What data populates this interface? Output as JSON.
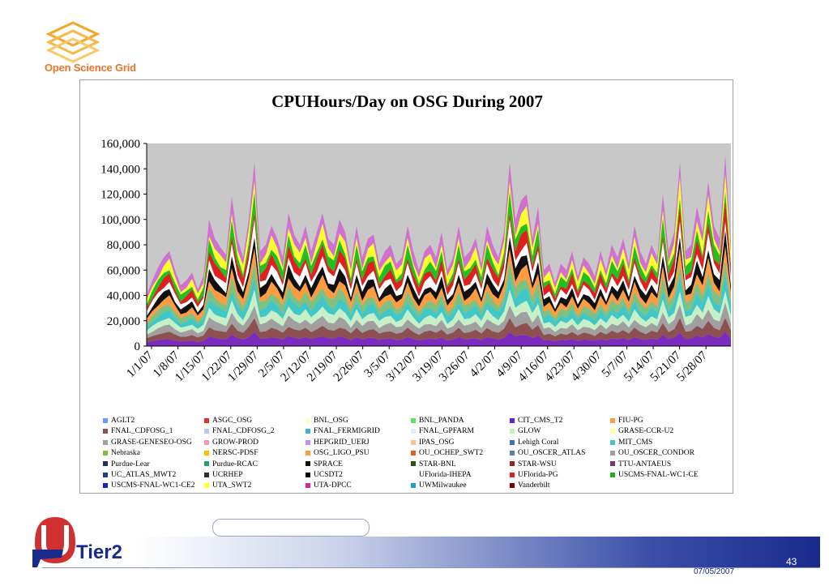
{
  "branding": {
    "org_name": "Open Science Grid",
    "logo_icon": "stacked-layers-icon",
    "tier_logo_text": "Tier2",
    "tier_logo_icon": "uf-gator-icon"
  },
  "footer": {
    "page_number": "43",
    "date": "07/05/2007"
  },
  "chart_data": {
    "type": "area",
    "stacked": true,
    "title": "CPUHours/Day on OSG During 2007",
    "xlabel": "",
    "ylabel": "",
    "ylim": [
      0,
      160000
    ],
    "y_ticks": [
      "0",
      "20,000",
      "40,000",
      "60,000",
      "80,000",
      "100,000",
      "120,000",
      "140,000",
      "160,000"
    ],
    "y_tick_values": [
      0,
      20000,
      40000,
      60000,
      80000,
      100000,
      120000,
      140000,
      160000
    ],
    "x_ticks": [
      "1/1/07",
      "1/8/07",
      "1/15/07",
      "1/22/07",
      "1/29/07",
      "2/5/07",
      "2/12/07",
      "2/19/07",
      "2/26/07",
      "3/5/07",
      "3/12/07",
      "3/19/07",
      "3/26/07",
      "4/2/07",
      "4/9/07",
      "4/16/07",
      "4/23/07",
      "4/30/07",
      "5/7/07",
      "5/14/07",
      "5/21/07",
      "5/28/07"
    ],
    "grid": false,
    "plot_background": "#c8c8c8",
    "legend_position": "bottom",
    "total_envelope": [
      40000,
      52000,
      62000,
      70000,
      75000,
      60000,
      48000,
      52000,
      58000,
      45000,
      55000,
      100000,
      85000,
      78000,
      72000,
      118000,
      85000,
      70000,
      100000,
      145000,
      75000,
      80000,
      95000,
      85000,
      70000,
      105000,
      88000,
      80000,
      95000,
      75000,
      90000,
      105000,
      85000,
      80000,
      100000,
      90000,
      65000,
      95000,
      70000,
      85000,
      88000,
      65000,
      75000,
      80000,
      65000,
      70000,
      95000,
      75000,
      60000,
      75000,
      80000,
      70000,
      90000,
      60000,
      70000,
      95000,
      70000,
      75000,
      85000,
      65000,
      95000,
      80000,
      70000,
      90000,
      145000,
      100000,
      115000,
      120000,
      85000,
      110000,
      60000,
      65000,
      50000,
      65000,
      60000,
      75000,
      55000,
      70000,
      65000,
      55000,
      75000,
      60000,
      80000,
      70000,
      85000,
      65000,
      95000,
      75000,
      65000,
      80000,
      70000,
      120000,
      75000,
      90000,
      145000,
      75000,
      80000,
      110000,
      90000,
      130000,
      95000,
      85000,
      150000,
      80000
    ],
    "series_colors": [
      "#7b2cbf",
      "#8c5050",
      "#a0a0a0",
      "#c8f0c8",
      "#40c8c8",
      "#80c080",
      "#ff9c40",
      "#101010",
      "#ffffff",
      "#e02020",
      "#20c020",
      "#ffff30",
      "#d070d0"
    ],
    "legend": [
      {
        "name": "AGLT2",
        "color": "#6699ff"
      },
      {
        "name": "ASGC_OSG",
        "color": "#e03030"
      },
      {
        "name": "BNL_OSG",
        "color": "#ffffc0"
      },
      {
        "name": "BNL_PANDA",
        "color": "#60e060"
      },
      {
        "name": "CIT_CMS_T2",
        "color": "#6020e0"
      },
      {
        "name": "FIU-PG",
        "color": "#ff9c40"
      },
      {
        "name": "FNAL_CDFOSG_1",
        "color": "#8c5050"
      },
      {
        "name": "FNAL_CDFOSG_2",
        "color": "#c0c0ff"
      },
      {
        "name": "FNAL_FERMIGRID",
        "color": "#40b0e0"
      },
      {
        "name": "FNAL_GPFARM",
        "color": "#e0f0ff"
      },
      {
        "name": "GLOW",
        "color": "#c0f0c0"
      },
      {
        "name": "GRASE-CCR-U2",
        "color": "#ffffa0"
      },
      {
        "name": "GRASE-GENESEO-OSG",
        "color": "#a0a0a0"
      },
      {
        "name": "GROW-PROD",
        "color": "#ff90c0"
      },
      {
        "name": "HEPGRID_UERJ",
        "color": "#c090ff"
      },
      {
        "name": "IPAS_OSG",
        "color": "#ffc090"
      },
      {
        "name": "Lehigh Coral",
        "color": "#4070c0"
      },
      {
        "name": "MIT_CMS",
        "color": "#40c8c8"
      },
      {
        "name": "Nebraska",
        "color": "#80c040"
      },
      {
        "name": "NERSC-PDSF",
        "color": "#ffc000"
      },
      {
        "name": "OSG_LIGO_PSU",
        "color": "#ff9c40"
      },
      {
        "name": "OU_OCHEP_SWT2",
        "color": "#e06020"
      },
      {
        "name": "OU_OSCER_ATLAS",
        "color": "#6080a0"
      },
      {
        "name": "OU_OSCER_CONDOR",
        "color": "#a0a0a0"
      },
      {
        "name": "Purdue-Lear",
        "color": "#203060"
      },
      {
        "name": "Purdue-RCAC",
        "color": "#20a070"
      },
      {
        "name": "SPRACE",
        "color": "#101010"
      },
      {
        "name": "STAR-BNL",
        "color": "#305020"
      },
      {
        "name": "STAR-WSU",
        "color": "#a02020"
      },
      {
        "name": "TTU-ANTAEUS",
        "color": "#803080"
      },
      {
        "name": "UC_ATLAS_MWT2",
        "color": "#204080"
      },
      {
        "name": "UCRHEP",
        "color": "#303030"
      },
      {
        "name": "UCSDT2",
        "color": "#000000"
      },
      {
        "name": "UFlorida-IHEPA",
        "color": "#ffffff"
      },
      {
        "name": "UFlorida-PG",
        "color": "#e02020"
      },
      {
        "name": "USCMS-FNAL-WC1-CE",
        "color": "#20b020"
      },
      {
        "name": "USCMS-FNAL-WC1-CE2",
        "color": "#2020c0"
      },
      {
        "name": "UTA_SWT2",
        "color": "#ffff30"
      },
      {
        "name": "UTA-DPCC",
        "color": "#e020a0"
      },
      {
        "name": "UWMilwaukee",
        "color": "#20a0c0"
      },
      {
        "name": "Vanderbilt",
        "color": "#800000"
      }
    ]
  }
}
